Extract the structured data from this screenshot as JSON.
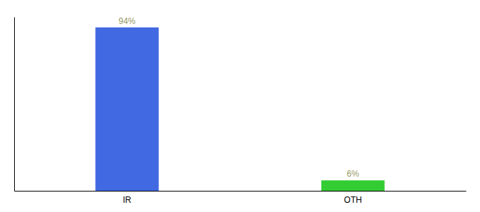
{
  "chart_data": {
    "type": "bar",
    "categories": [
      "IR",
      "OTH"
    ],
    "values": [
      94,
      6
    ],
    "colors": [
      "#4169e1",
      "#33cc33"
    ],
    "value_labels": [
      "94%",
      "6%"
    ],
    "data_labels": true,
    "ylim": [
      0,
      100
    ],
    "tick_labels": "x",
    "grid": false
  }
}
